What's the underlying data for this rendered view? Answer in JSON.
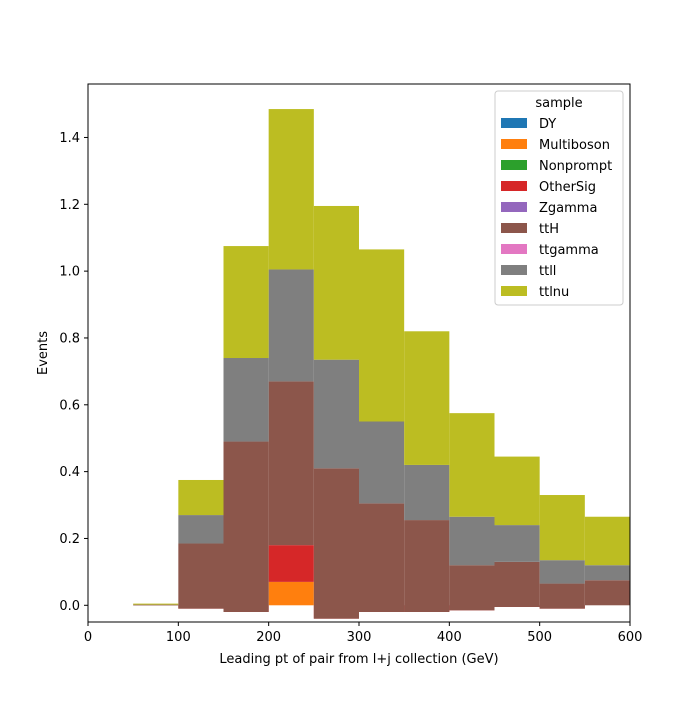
{
  "chart_data": {
    "type": "bar",
    "stacked": true,
    "title": "",
    "xlabel": "Leading pt of pair from l+j collection (GeV)",
    "ylabel": "Events",
    "xlim": [
      0,
      600
    ],
    "ylim": [
      -0.05,
      1.56
    ],
    "grid": false,
    "xticks": [
      0,
      100,
      200,
      300,
      400,
      500,
      600
    ],
    "yticks": [
      0.0,
      0.2,
      0.4,
      0.6,
      0.8,
      1.0,
      1.2,
      1.4
    ],
    "xtick_labels": [
      "0",
      "100",
      "200",
      "300",
      "400",
      "500",
      "600"
    ],
    "ytick_labels": [
      "0.0",
      "0.2",
      "0.4",
      "0.6",
      "0.8",
      "1.0",
      "1.2",
      "1.4"
    ],
    "bin_edges": [
      0,
      50,
      100,
      150,
      200,
      250,
      300,
      350,
      400,
      450,
      500,
      550,
      600
    ],
    "legend": {
      "title": "sample",
      "location": "top-right"
    },
    "series": [
      {
        "name": "DY",
        "color": "#1f77b4",
        "values": [
          0,
          0,
          0,
          0,
          0,
          0,
          0,
          0,
          0,
          0,
          0,
          0
        ]
      },
      {
        "name": "Multiboson",
        "color": "#ff7f0e",
        "values": [
          0,
          0,
          0,
          0,
          0.07,
          0,
          0,
          0,
          0,
          0,
          0,
          0
        ]
      },
      {
        "name": "Nonprompt",
        "color": "#2ca02c",
        "values": [
          0,
          0,
          0,
          0,
          0,
          0,
          0,
          0,
          0,
          0,
          0,
          0
        ]
      },
      {
        "name": "OtherSig",
        "color": "#d62728",
        "values": [
          0,
          0,
          -0.01,
          -0.02,
          0.11,
          -0.04,
          -0.02,
          -0.02,
          -0.015,
          -0.005,
          -0.01,
          0
        ]
      },
      {
        "name": "Zgamma",
        "color": "#9467bd",
        "values": [
          0,
          0,
          0,
          0,
          0,
          0,
          0,
          0,
          0,
          0,
          0,
          0
        ]
      },
      {
        "name": "ttH",
        "color": "#8c564b",
        "values": [
          0,
          0.002,
          0.195,
          0.51,
          0.49,
          0.45,
          0.325,
          0.275,
          0.135,
          0.135,
          0.075,
          0.075
        ]
      },
      {
        "name": "ttgamma",
        "color": "#e377c2",
        "values": [
          0,
          0,
          0,
          0,
          0,
          0,
          0,
          0,
          0,
          0,
          0,
          0
        ]
      },
      {
        "name": "ttll",
        "color": "#7f7f7f",
        "values": [
          0,
          0,
          0.085,
          0.25,
          0.335,
          0.325,
          0.245,
          0.165,
          0.145,
          0.11,
          0.07,
          0.045
        ]
      },
      {
        "name": "ttlnu",
        "color": "#bcbd22",
        "values": [
          0,
          0.003,
          0.105,
          0.335,
          0.48,
          0.46,
          0.515,
          0.4,
          0.31,
          0.205,
          0.195,
          0.145
        ]
      }
    ]
  }
}
